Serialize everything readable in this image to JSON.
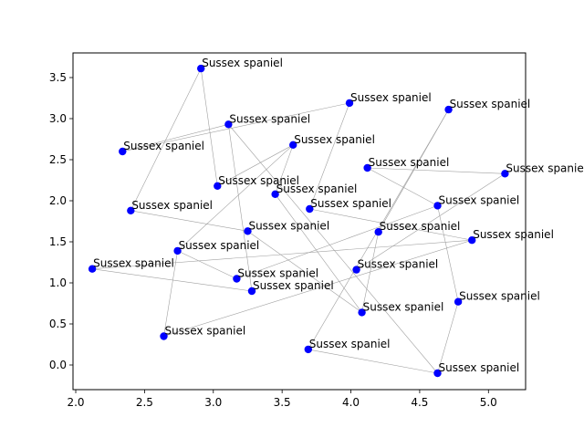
{
  "chart_data": {
    "type": "scatter",
    "title": "",
    "xlabel": "",
    "ylabel": "",
    "xlim": [
      1.98,
      5.27
    ],
    "ylim": [
      -0.3,
      3.8
    ],
    "xticks": [
      2.0,
      2.5,
      3.0,
      3.5,
      4.0,
      4.5,
      5.0
    ],
    "xtick_labels": [
      "2.0",
      "2.5",
      "3.0",
      "3.5",
      "4.0",
      "4.5",
      "5.0"
    ],
    "yticks": [
      0.0,
      0.5,
      1.0,
      1.5,
      2.0,
      2.5,
      3.0,
      3.5
    ],
    "ytick_labels": [
      "0.0",
      "0.5",
      "1.0",
      "1.5",
      "2.0",
      "2.5",
      "3.0",
      "3.5"
    ],
    "grid": false,
    "marker_color": "#0000ff",
    "edge_color": "#a0a0a0",
    "points": [
      {
        "label": "Sussex spaniel",
        "x": 2.91,
        "y": 3.61
      },
      {
        "label": "Sussex spaniel",
        "x": 3.99,
        "y": 3.19
      },
      {
        "label": "Sussex spaniel",
        "x": 4.71,
        "y": 3.11
      },
      {
        "label": "Sussex spaniel",
        "x": 3.11,
        "y": 2.93
      },
      {
        "label": "Sussex spaniel",
        "x": 3.58,
        "y": 2.68
      },
      {
        "label": "Sussex spaniel",
        "x": 2.34,
        "y": 2.6
      },
      {
        "label": "Sussex spaniel",
        "x": 4.12,
        "y": 2.4
      },
      {
        "label": "Sussex spaniel",
        "x": 5.12,
        "y": 2.33
      },
      {
        "label": "Sussex spaniel",
        "x": 3.03,
        "y": 2.18
      },
      {
        "label": "Sussex spaniel",
        "x": 3.45,
        "y": 2.08
      },
      {
        "label": "Sussex spaniel",
        "x": 4.63,
        "y": 1.94
      },
      {
        "label": "Sussex spaniel",
        "x": 3.7,
        "y": 1.9
      },
      {
        "label": "Sussex spaniel",
        "x": 2.4,
        "y": 1.88
      },
      {
        "label": "Sussex spaniel",
        "x": 3.25,
        "y": 1.63
      },
      {
        "label": "Sussex spaniel",
        "x": 4.2,
        "y": 1.62
      },
      {
        "label": "Sussex spaniel",
        "x": 4.88,
        "y": 1.52
      },
      {
        "label": "Sussex spaniel",
        "x": 2.74,
        "y": 1.39
      },
      {
        "label": "Sussex spaniel",
        "x": 2.12,
        "y": 1.17
      },
      {
        "label": "Sussex spaniel",
        "x": 4.04,
        "y": 1.16
      },
      {
        "label": "Sussex spaniel",
        "x": 3.17,
        "y": 1.05
      },
      {
        "label": "Sussex spaniel",
        "x": 3.28,
        "y": 0.9
      },
      {
        "label": "Sussex spaniel",
        "x": 4.78,
        "y": 0.77
      },
      {
        "label": "Sussex spaniel",
        "x": 4.08,
        "y": 0.64
      },
      {
        "label": "Sussex spaniel",
        "x": 2.64,
        "y": 0.35
      },
      {
        "label": "Sussex spaniel",
        "x": 3.69,
        "y": 0.19
      },
      {
        "label": "Sussex spaniel",
        "x": 4.63,
        "y": -0.1
      }
    ],
    "edges": [
      [
        0,
        8
      ],
      [
        0,
        12
      ],
      [
        5,
        3
      ],
      [
        3,
        20
      ],
      [
        3,
        25
      ],
      [
        8,
        4
      ],
      [
        4,
        9
      ],
      [
        16,
        4
      ],
      [
        1,
        11
      ],
      [
        1,
        5
      ],
      [
        2,
        24
      ],
      [
        2,
        14
      ],
      [
        6,
        7
      ],
      [
        6,
        10
      ],
      [
        10,
        21
      ],
      [
        10,
        19
      ],
      [
        7,
        18
      ],
      [
        17,
        20
      ],
      [
        17,
        15
      ],
      [
        12,
        13
      ],
      [
        13,
        22
      ],
      [
        9,
        22
      ],
      [
        11,
        15
      ],
      [
        16,
        19
      ],
      [
        16,
        23
      ],
      [
        23,
        15
      ],
      [
        14,
        22
      ],
      [
        24,
        25
      ],
      [
        21,
        25
      ]
    ]
  }
}
